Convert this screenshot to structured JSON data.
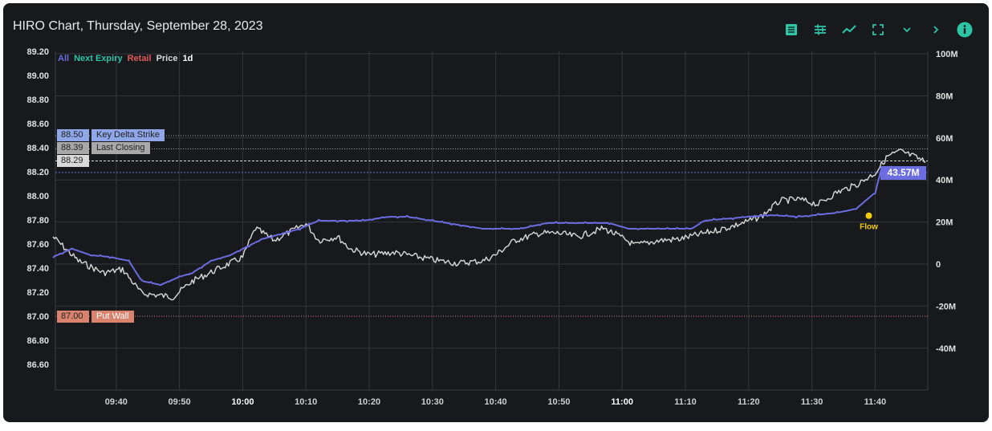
{
  "header": {
    "title": "HIRO Chart, Thursday, September 28, 2023"
  },
  "toolbar": [
    {
      "icon": "table-icon"
    },
    {
      "icon": "sliders-icon"
    },
    {
      "icon": "line-chart-icon"
    },
    {
      "icon": "fullscreen-icon"
    },
    {
      "icon": "chevron-down-icon"
    },
    {
      "icon": "chevron-right-icon"
    },
    {
      "icon": "info-icon"
    }
  ],
  "legend": {
    "all": "All",
    "next_expiry": "Next Expiry",
    "retail": "Retail",
    "price": "Price",
    "range": "1d"
  },
  "colors": {
    "accent": "#2ec4a6",
    "all": "#6a6ce0",
    "next_expiry": "#2ec4a6",
    "retail": "#e05a5a",
    "price": "#d8d8d8",
    "put_wall": "#d9826e",
    "key_delta": "#8fa6e8",
    "last_closing": "#a8a8a8",
    "flow_marker": "#f2cc0c"
  },
  "levels": {
    "key_delta_strike": {
      "value": "88.50",
      "label": "Key Delta Strike"
    },
    "last_closing": {
      "value": "88.39",
      "label": "Last Closing"
    },
    "current_price": {
      "value": "88.29"
    },
    "put_wall": {
      "value": "87.00",
      "label": "Put Wall"
    },
    "current_flow": {
      "value": "43.57M"
    }
  },
  "chart_data": {
    "type": "line",
    "x_ticks": [
      "09:40",
      "09:50",
      "10:00",
      "10:10",
      "10:20",
      "10:30",
      "10:40",
      "10:50",
      "11:00",
      "11:10",
      "11:20",
      "11:30",
      "11:40"
    ],
    "x_range": [
      "09:30",
      "11:49"
    ],
    "y_left_ticks": [
      "89.20",
      "89.00",
      "88.80",
      "88.60",
      "88.40",
      "88.20",
      "88.00",
      "87.80",
      "87.60",
      "87.40",
      "87.20",
      "87.00",
      "86.80",
      "86.60"
    ],
    "y_left_range": [
      86.45,
      89.22
    ],
    "y_right_ticks": [
      "100M",
      "80M",
      "60M",
      "40M",
      "20M",
      "0",
      "-20M",
      "-40M"
    ],
    "y_right_range": [
      -60,
      100
    ],
    "grid": true,
    "series": [
      {
        "name": "Price",
        "axis": "left",
        "color": "#d8d8d8",
        "x": [
          "09:30",
          "09:34",
          "09:38",
          "09:41",
          "09:44",
          "09:49",
          "09:52",
          "09:56",
          "10:00",
          "10:02",
          "10:05",
          "10:10",
          "10:12",
          "10:15",
          "10:17",
          "10:20",
          "10:24",
          "10:28",
          "10:31",
          "10:34",
          "10:38",
          "10:40",
          "10:43",
          "10:47",
          "10:50",
          "10:53",
          "10:57",
          "10:59",
          "11:02",
          "11:06",
          "11:09",
          "11:13",
          "11:17",
          "11:20",
          "11:22",
          "11:25",
          "11:28",
          "11:31",
          "11:34",
          "11:37",
          "11:40",
          "11:42",
          "11:44",
          "11:46",
          "11:48"
        ],
        "y": [
          87.66,
          87.46,
          87.36,
          87.39,
          87.19,
          87.16,
          87.29,
          87.39,
          87.49,
          87.73,
          87.63,
          87.77,
          87.63,
          87.66,
          87.56,
          87.51,
          87.53,
          87.49,
          87.46,
          87.44,
          87.46,
          87.51,
          87.63,
          87.69,
          87.69,
          87.66,
          87.73,
          87.68,
          87.59,
          87.63,
          87.64,
          87.69,
          87.74,
          87.79,
          87.83,
          87.96,
          87.97,
          87.93,
          88.03,
          88.09,
          88.19,
          88.33,
          88.37,
          88.33,
          88.28
        ]
      },
      {
        "name": "All",
        "axis": "right",
        "color": "#6a6ce0",
        "x": [
          "09:30",
          "09:33",
          "09:36",
          "09:39",
          "09:42",
          "09:44",
          "09:47",
          "09:50",
          "09:52",
          "09:55",
          "09:58",
          "10:03",
          "10:09",
          "10:12",
          "10:19",
          "10:23",
          "10:26",
          "10:30",
          "10:38",
          "10:44",
          "10:48",
          "10:58",
          "11:01",
          "11:11",
          "11:13",
          "11:20",
          "11:23",
          "11:28",
          "11:34",
          "11:37",
          "11:40",
          "11:41",
          "11:43",
          "11:46",
          "11:48"
        ],
        "y": [
          3.4,
          7.3,
          4.2,
          3.4,
          1.5,
          -8.0,
          -9.9,
          -6.1,
          -4.2,
          1.5,
          4.2,
          11.8,
          16.8,
          20.6,
          20.6,
          22.5,
          22.5,
          20.6,
          16.8,
          16.8,
          19.5,
          19.5,
          16.8,
          16.8,
          20.6,
          22.5,
          23.3,
          22.5,
          24.4,
          26.3,
          34.0,
          45.4,
          46.2,
          45.4,
          43.57
        ]
      }
    ],
    "annotations": [
      {
        "label": "Flow",
        "x": "11:39",
        "y": 23
      }
    ]
  }
}
